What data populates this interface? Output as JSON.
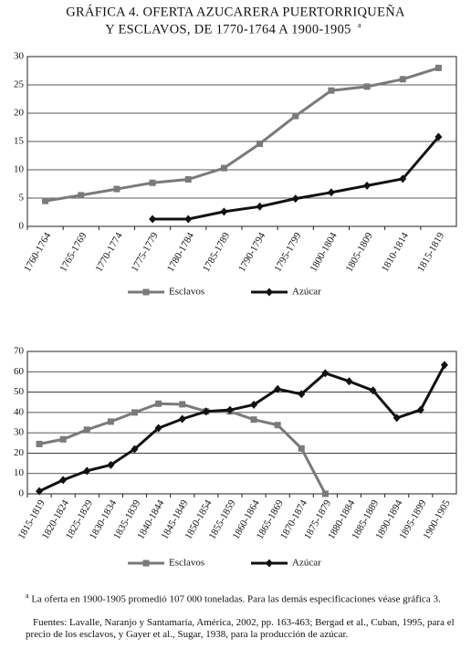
{
  "title": [
    "GRÁFICA 4. OFERTA AZUCARERA PUERTORRIQUEÑA",
    "Y ESCLAVOS, DE 1770-1764 A 1900-1905"
  ],
  "title_note_mark": "a",
  "notes": [
    "La oferta en 1900-1905 promedió 107 000 toneladas. Para las demás especificaciones véase gráfica 3.",
    "Fuentes: Lavalle, Naranjo y Santamaría, América, 2002, pp. 163-463; Bergad et al., Cuban, 1995, para el precio de los esclavos, y Gayer et al., Sugar, 1938, para la producción de azúcar."
  ],
  "chart_data": [
    {
      "type": "line",
      "categories": [
        "1760-1764",
        "1765-1769",
        "1770-1774",
        "1775-1779",
        "1780-1784",
        "1785-1789",
        "1790-1794",
        "1795-1799",
        "1800-1804",
        "1805-1809",
        "1810-1814",
        "1815-1819"
      ],
      "series": [
        {
          "name": "Esclavos",
          "color": "#7a7a7a",
          "marker": "square",
          "values": [
            4.5,
            5.5,
            6.6,
            7.7,
            8.3,
            10.3,
            14.6,
            19.5,
            24,
            24.7,
            26,
            28
          ]
        },
        {
          "name": "Azúcar",
          "color": "#111111",
          "marker": "diamond",
          "values": [
            null,
            null,
            null,
            1.3,
            1.3,
            2.6,
            3.5,
            4.9,
            6,
            7.2,
            8.4,
            15.8
          ]
        }
      ],
      "ylim": [
        0,
        30
      ],
      "yticks": [
        0,
        5,
        10,
        15,
        20,
        25,
        30
      ],
      "grid": true
    },
    {
      "type": "line",
      "categories": [
        "1815-1819",
        "1820-1824",
        "1825-1829",
        "1830-1834",
        "1835-1839",
        "1840-1844",
        "1845-1849",
        "1850-1854",
        "1855-1859",
        "1860-1864",
        "1865-1869",
        "1870-1874",
        "1875-1879",
        "1880-1884",
        "1885-1889",
        "1890-1894",
        "1895-1899",
        "1900-1905"
      ],
      "series": [
        {
          "name": "Esclavos",
          "color": "#7a7a7a",
          "marker": "square",
          "values": [
            24.5,
            26.8,
            31.5,
            35.5,
            40,
            44.3,
            44,
            40.5,
            40.5,
            36.5,
            33.8,
            22.3,
            0,
            null,
            null,
            null,
            null,
            null
          ]
        },
        {
          "name": "Azúcar",
          "color": "#111111",
          "marker": "diamond",
          "values": [
            1.3,
            6.8,
            11.3,
            14.2,
            22,
            32.3,
            36.8,
            40.5,
            41.2,
            43.8,
            51.5,
            49,
            59.3,
            55.3,
            50.8,
            37.3,
            41.3,
            63.3
          ]
        }
      ],
      "ylim": [
        0,
        70
      ],
      "yticks": [
        0,
        10,
        20,
        30,
        40,
        50,
        60,
        70
      ],
      "grid": true
    }
  ]
}
